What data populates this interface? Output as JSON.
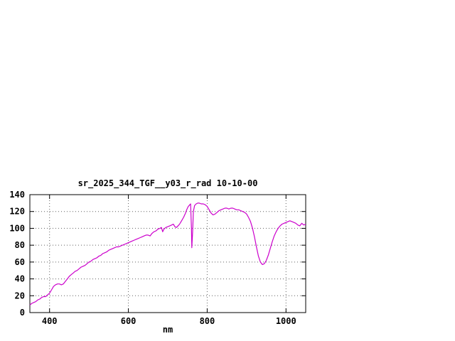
{
  "chart_data": {
    "type": "line",
    "title": "sr_2025_344_TGF__y03_r_rad 10-10-00",
    "xlabel": "nm",
    "ylabel": "",
    "xlim": [
      350,
      1050
    ],
    "ylim": [
      0,
      140
    ],
    "xticks": [
      400,
      600,
      800,
      1000
    ],
    "yticks": [
      0,
      20,
      40,
      60,
      80,
      100,
      120,
      140
    ],
    "grid": true,
    "legend": false,
    "colors": {
      "line": "#cc00cc",
      "axis": "#000000",
      "grid": "#606060",
      "text": "#000000",
      "background": "#ffffff"
    },
    "x": [
      350,
      355,
      360,
      365,
      370,
      375,
      380,
      385,
      390,
      395,
      400,
      405,
      410,
      415,
      420,
      425,
      430,
      435,
      440,
      445,
      450,
      455,
      460,
      465,
      470,
      475,
      480,
      485,
      490,
      495,
      500,
      505,
      510,
      515,
      520,
      525,
      530,
      535,
      540,
      545,
      550,
      555,
      560,
      565,
      570,
      575,
      580,
      585,
      590,
      595,
      600,
      605,
      610,
      615,
      620,
      625,
      630,
      635,
      640,
      645,
      650,
      655,
      660,
      665,
      670,
      675,
      680,
      684,
      687,
      690,
      695,
      700,
      705,
      710,
      714,
      718,
      722,
      726,
      730,
      735,
      740,
      745,
      748,
      752,
      756,
      758,
      760,
      761,
      763,
      765,
      768,
      772,
      776,
      780,
      785,
      790,
      795,
      800,
      805,
      810,
      815,
      820,
      825,
      830,
      835,
      840,
      845,
      850,
      855,
      860,
      865,
      870,
      875,
      880,
      885,
      890,
      895,
      900,
      905,
      910,
      915,
      920,
      925,
      930,
      935,
      940,
      945,
      950,
      955,
      960,
      965,
      970,
      975,
      980,
      985,
      990,
      995,
      1000,
      1005,
      1010,
      1015,
      1020,
      1025,
      1030,
      1035,
      1040,
      1045,
      1050
    ],
    "values": [
      9,
      11,
      12,
      13,
      15,
      16,
      18,
      19,
      19,
      21,
      23,
      27,
      31,
      33,
      34,
      34,
      33,
      34,
      37,
      40,
      43,
      45,
      47,
      49,
      50,
      52,
      54,
      55,
      56,
      58,
      60,
      61,
      63,
      64,
      65,
      67,
      68,
      70,
      71,
      72,
      74,
      75,
      76,
      77,
      78,
      78,
      79,
      80,
      81,
      82,
      83,
      84,
      85,
      86,
      87,
      88,
      89,
      90,
      91,
      92,
      92,
      91,
      94,
      96,
      97,
      99,
      100,
      101,
      96,
      99,
      101,
      102,
      103,
      104,
      105,
      102,
      101,
      103,
      105,
      109,
      113,
      118,
      122,
      126,
      128,
      129,
      100,
      77,
      95,
      120,
      127,
      129,
      130,
      130,
      129,
      129,
      128,
      126,
      122,
      118,
      116,
      117,
      119,
      121,
      122,
      123,
      124,
      124,
      123,
      124,
      124,
      123,
      122,
      122,
      121,
      120,
      119,
      117,
      113,
      108,
      100,
      90,
      78,
      67,
      60,
      57,
      58,
      62,
      68,
      76,
      84,
      91,
      96,
      100,
      103,
      105,
      106,
      107,
      108,
      109,
      108,
      107,
      106,
      104,
      103,
      106,
      104,
      105
    ]
  }
}
